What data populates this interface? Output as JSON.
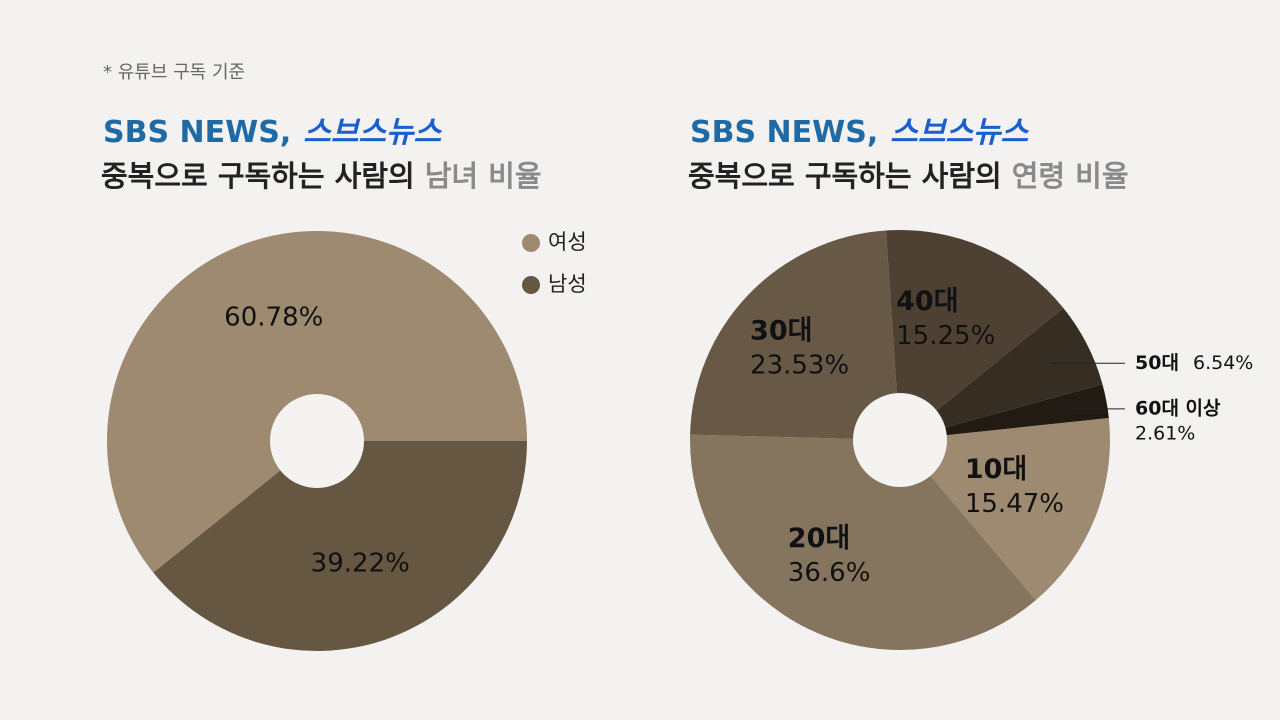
{
  "note": "* 유튜브 구독 기준",
  "chart_data": [
    {
      "type": "pie",
      "brand": "SBS NEWS,",
      "brand_logo": "스브스뉴스",
      "title": "중복으로 구독하는 사람의",
      "title_highlight": "남녀 비율",
      "categories": [
        "여성",
        "남성"
      ],
      "values": [
        60.78,
        39.22
      ],
      "value_labels": [
        "60.78%",
        "39.22%"
      ],
      "colors": [
        "#9e8a70",
        "#665743"
      ],
      "legend": "top-right"
    },
    {
      "type": "pie",
      "brand": "SBS NEWS,",
      "brand_logo": "스브스뉴스",
      "title": "중복으로 구독하는 사람의",
      "title_highlight": "연령 비율",
      "categories": [
        "10대",
        "20대",
        "30대",
        "40대",
        "50대",
        "60대 이상"
      ],
      "values": [
        15.47,
        36.6,
        23.53,
        15.25,
        6.54,
        2.61
      ],
      "value_labels": [
        "15.47%",
        "36.6%",
        "23.53%",
        "15.25%",
        "6.54%",
        "2.61%"
      ],
      "colors": [
        "#9e8a70",
        "#85745e",
        "#685846",
        "#4e4133",
        "#372e23",
        "#211b14"
      ]
    }
  ]
}
